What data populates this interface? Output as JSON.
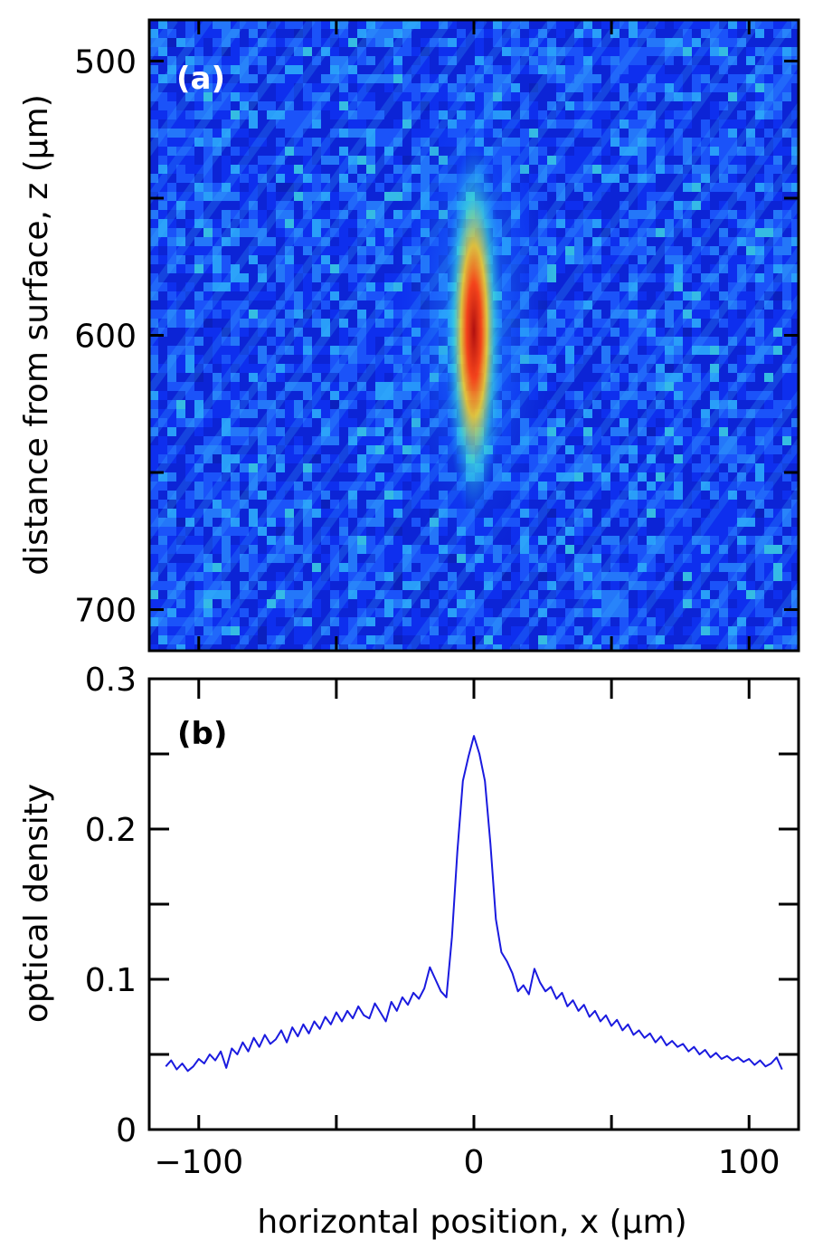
{
  "chart_data": [
    {
      "type": "heatmap",
      "panel_label": "(a)",
      "xlabel": "",
      "ylabel": "distance from surface, z (µm)",
      "xlim": [
        -118,
        118
      ],
      "ylim": [
        485,
        715
      ],
      "y_inverted": true,
      "x_ticks": [
        -100,
        -50,
        0,
        50,
        100
      ],
      "y_ticks": [
        500,
        550,
        600,
        650,
        700
      ],
      "y_tick_labels": [
        "500",
        "",
        "600",
        "",
        "700"
      ],
      "colormap": "jet",
      "feature": {
        "description_visible": "vertical elongated bright cloud centred at x=0",
        "center_x": 0,
        "center_z": 600,
        "peak_z_range": [
          585,
          620
        ],
        "background_stripes": "diagonal"
      }
    },
    {
      "type": "line",
      "panel_label": "(b)",
      "xlabel": "horizontal position, x (µm)",
      "ylabel": "optical density",
      "xlim": [
        -118,
        118
      ],
      "ylim": [
        0,
        0.3
      ],
      "x_ticks": [
        -100,
        -50,
        0,
        50,
        100
      ],
      "x_tick_labels": [
        "−100",
        "",
        "0",
        "",
        "100"
      ],
      "y_ticks": [
        0,
        0.05,
        0.1,
        0.15,
        0.2,
        0.25,
        0.3
      ],
      "y_tick_labels": [
        "0",
        "",
        "0.1",
        "",
        "0.2",
        "",
        "0.3"
      ],
      "series": [
        {
          "color": "#1a1adf",
          "x": [
            -112,
            -110,
            -108,
            -106,
            -104,
            -102,
            -100,
            -98,
            -96,
            -94,
            -92,
            -90,
            -88,
            -86,
            -84,
            -82,
            -80,
            -78,
            -76,
            -74,
            -72,
            -70,
            -68,
            -66,
            -64,
            -62,
            -60,
            -58,
            -56,
            -54,
            -52,
            -50,
            -48,
            -46,
            -44,
            -42,
            -40,
            -38,
            -36,
            -34,
            -32,
            -30,
            -28,
            -26,
            -24,
            -22,
            -20,
            -18,
            -16,
            -14,
            -12,
            -10,
            -8,
            -6,
            -4,
            -2,
            0,
            2,
            4,
            6,
            8,
            10,
            12,
            14,
            16,
            18,
            20,
            22,
            24,
            26,
            28,
            30,
            32,
            34,
            36,
            38,
            40,
            42,
            44,
            46,
            48,
            50,
            52,
            54,
            56,
            58,
            60,
            62,
            64,
            66,
            68,
            70,
            72,
            74,
            76,
            78,
            80,
            82,
            84,
            86,
            88,
            90,
            92,
            94,
            96,
            98,
            100,
            102,
            104,
            106,
            108,
            110,
            112
          ],
          "y": [
            0.042,
            0.046,
            0.04,
            0.044,
            0.039,
            0.042,
            0.047,
            0.044,
            0.05,
            0.046,
            0.052,
            0.041,
            0.054,
            0.05,
            0.058,
            0.052,
            0.061,
            0.055,
            0.063,
            0.057,
            0.06,
            0.066,
            0.058,
            0.068,
            0.062,
            0.07,
            0.064,
            0.072,
            0.067,
            0.075,
            0.07,
            0.078,
            0.072,
            0.079,
            0.074,
            0.082,
            0.076,
            0.074,
            0.084,
            0.078,
            0.072,
            0.085,
            0.079,
            0.088,
            0.083,
            0.091,
            0.087,
            0.094,
            0.108,
            0.1,
            0.092,
            0.088,
            0.128,
            0.185,
            0.232,
            0.248,
            0.262,
            0.25,
            0.232,
            0.19,
            0.14,
            0.118,
            0.112,
            0.104,
            0.092,
            0.096,
            0.09,
            0.107,
            0.098,
            0.092,
            0.095,
            0.087,
            0.091,
            0.082,
            0.086,
            0.079,
            0.083,
            0.075,
            0.079,
            0.072,
            0.076,
            0.069,
            0.073,
            0.066,
            0.07,
            0.063,
            0.066,
            0.061,
            0.064,
            0.058,
            0.062,
            0.056,
            0.059,
            0.055,
            0.057,
            0.052,
            0.055,
            0.05,
            0.053,
            0.048,
            0.051,
            0.047,
            0.049,
            0.046,
            0.048,
            0.045,
            0.047,
            0.043,
            0.046,
            0.042,
            0.044,
            0.048,
            0.04
          ]
        }
      ]
    }
  ]
}
